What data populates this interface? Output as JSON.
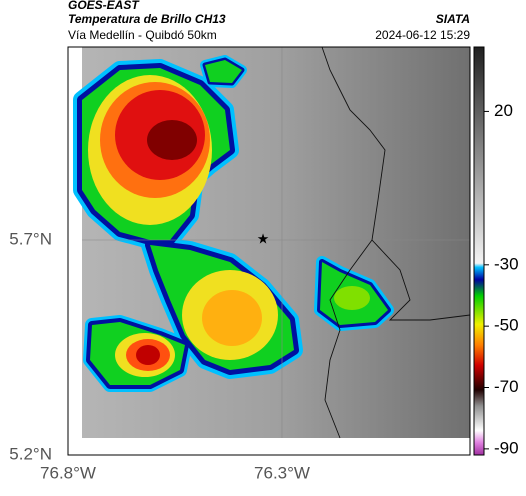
{
  "header": {
    "title": "GOES-EAST",
    "subtitle": "Temperatura de Brillo CH13",
    "source": "SIATA",
    "location": "Vía Medellín - Quibdó 50km",
    "timestamp": "2024-06-12 15:29"
  },
  "map": {
    "lon_labels": [
      "76.8°W",
      "76.3°W"
    ],
    "lat_labels": [
      "5.7°N",
      "5.2°N"
    ]
  },
  "colorbar": {
    "clim": [
      -92,
      41
    ],
    "ticks": [
      20,
      -30,
      -50,
      -70,
      -90
    ]
  }
}
